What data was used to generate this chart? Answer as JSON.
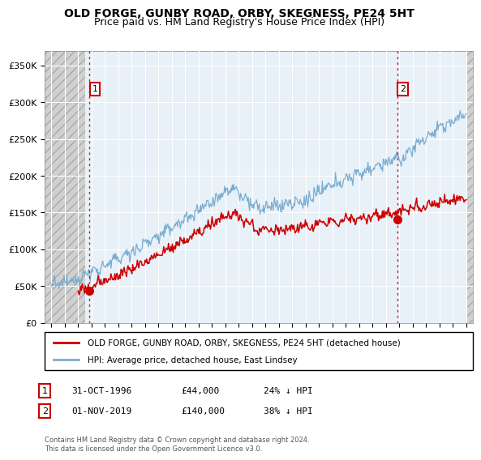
{
  "title": "OLD FORGE, GUNBY ROAD, ORBY, SKEGNESS, PE24 5HT",
  "subtitle": "Price paid vs. HM Land Registry's House Price Index (HPI)",
  "ylabel_ticks": [
    "£0",
    "£50K",
    "£100K",
    "£150K",
    "£200K",
    "£250K",
    "£300K",
    "£350K"
  ],
  "ytick_values": [
    0,
    50000,
    100000,
    150000,
    200000,
    250000,
    300000,
    350000
  ],
  "ylim": [
    0,
    370000
  ],
  "xlim": [
    1993.5,
    2025.5
  ],
  "sale1_x": 1996.83,
  "sale1_y": 44000,
  "sale2_x": 2019.83,
  "sale2_y": 140000,
  "legend_line1": "OLD FORGE, GUNBY ROAD, ORBY, SKEGNESS, PE24 5HT (detached house)",
  "legend_line2": "HPI: Average price, detached house, East Lindsey",
  "ann1_num": "1",
  "ann1_date": "31-OCT-1996",
  "ann1_price": "£44,000",
  "ann1_hpi": "24% ↓ HPI",
  "ann2_num": "2",
  "ann2_date": "01-NOV-2019",
  "ann2_price": "£140,000",
  "ann2_hpi": "38% ↓ HPI",
  "footer": "Contains HM Land Registry data © Crown copyright and database right 2024.\nThis data is licensed under the Open Government Licence v3.0.",
  "red_color": "#cc0000",
  "blue_color": "#7aadcf",
  "plot_bg": "#e8f0f8",
  "hatch_color": "#c8c8c8",
  "grid_color": "#ffffff",
  "title_fontsize": 10,
  "subtitle_fontsize": 9,
  "tick_fontsize": 8,
  "legend_fontsize": 8
}
